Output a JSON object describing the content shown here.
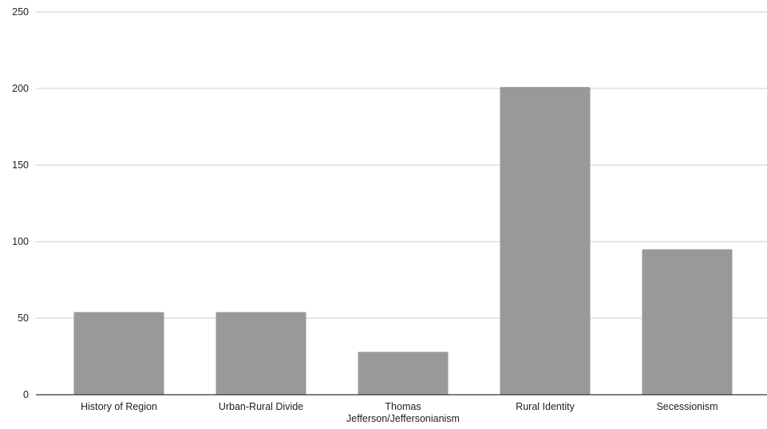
{
  "chart_data": {
    "type": "bar",
    "categories": [
      "History of Region",
      "Urban-Rural Divide",
      "Thomas Jefferson/Jeffersonianism",
      "Rural Identity",
      "Secessionism"
    ],
    "category_label_lines": [
      [
        "History of Region"
      ],
      [
        "Urban-Rural Divide"
      ],
      [
        "Thomas",
        "Jefferson/Jeffersonianism"
      ],
      [
        "Rural Identity"
      ],
      [
        "Secessionism"
      ]
    ],
    "values": [
      54,
      54,
      28,
      201,
      95
    ],
    "title": "",
    "xlabel": "",
    "ylabel": "",
    "ylim": [
      0,
      250
    ],
    "yticks": [
      0,
      50,
      100,
      150,
      200,
      250
    ],
    "grid": true,
    "legend": "none",
    "bar_color": "#999999",
    "grid_color": "#cccccc",
    "axis_color": "#333333"
  }
}
